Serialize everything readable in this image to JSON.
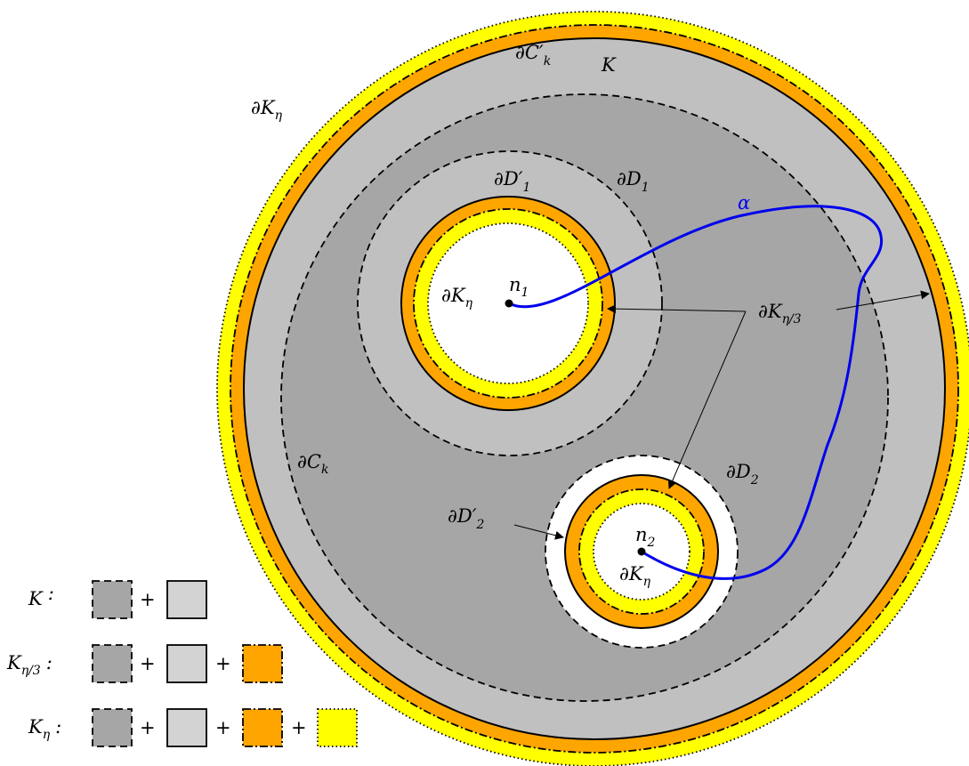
{
  "colors": {
    "dark_gray": "#a6a6a6",
    "light_gray": "#c0c0c0",
    "swatch_light": "#d3d3d3",
    "orange": "#ffa500",
    "yellow": "#ffff00",
    "curve": "#0000ee"
  },
  "labels": {
    "dK_eta_outer": "∂K",
    "dK_eta_outer_sub": "η",
    "dC_k_prime": "∂C′",
    "dC_k_prime_sub": "k",
    "K": "K",
    "dD1_prime": "∂D′",
    "dD1_prime_sub": "1",
    "dD1": "∂D",
    "dD1_sub": "1",
    "alpha": "α",
    "n1": "n",
    "n1_sub": "1",
    "dK_eta_inner1": "∂K",
    "dK_eta_inner1_sub": "η",
    "dK_eta_third": "∂K",
    "dK_eta_third_sub": "η/3",
    "dC_k": "∂C",
    "dC_k_sub": "k",
    "dD2": "∂D",
    "dD2_sub": "2",
    "dD2_prime": "∂D′",
    "dD2_prime_sub": "2",
    "n2": "n",
    "n2_sub": "2",
    "dK_eta_inner2": "∂K",
    "dK_eta_inner2_sub": "η"
  },
  "legend": {
    "rows": [
      {
        "name": "K",
        "sub": "",
        "colon": ":",
        "swatches": [
          "dark-dashed",
          "light-solid"
        ]
      },
      {
        "name": "K",
        "sub": "η/3",
        "colon": ":",
        "swatches": [
          "dark-dashed",
          "light-solid",
          "orange-dashdot"
        ]
      },
      {
        "name": "K",
        "sub": "η",
        "colon": ":",
        "swatches": [
          "dark-dashed",
          "light-solid",
          "orange-dashdot",
          "yellow-dotted"
        ]
      }
    ],
    "plus": "+"
  }
}
